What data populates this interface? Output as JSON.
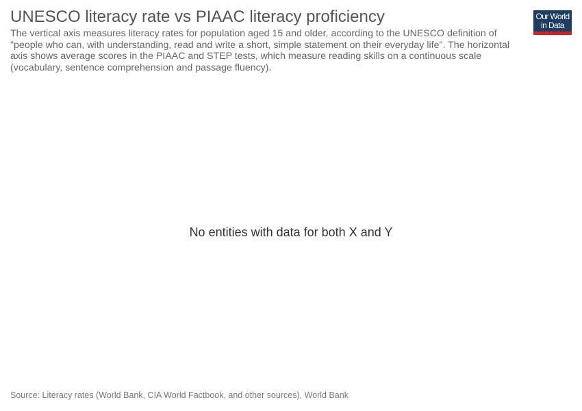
{
  "header": {
    "title": "UNESCO literacy rate vs PIAAC literacy proficiency",
    "subtitle": "The vertical axis measures literacy rates for population aged 15 and older, according to the UNESCO definition of \"people who can, with understanding, read and write a short, simple statement on their everyday life\". The horizontal axis shows average scores in the PIAAC and STEP tests, which measure reading skills on a continuous scale (vocabulary, sentence comprehension and passage fluency)."
  },
  "logo": {
    "line1": "Our World",
    "line2": "in Data",
    "background_color": "#1d3d63",
    "accent_color": "#ce261e"
  },
  "chart_data": {
    "type": "scatter",
    "title": "UNESCO literacy rate vs PIAAC literacy proficiency",
    "xlabel": "",
    "ylabel": "",
    "series": [],
    "message": "No entities with data for both X and Y"
  },
  "footer": {
    "source": "Source: Literacy rates (World Bank, CIA World Factbook, and other sources), World Bank"
  }
}
